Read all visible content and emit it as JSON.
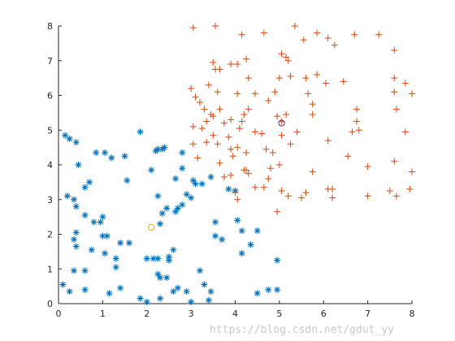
{
  "chart_data": {
    "type": "scatter",
    "title": "",
    "xlabel": "",
    "ylabel": "",
    "xlim": [
      0,
      8
    ],
    "ylim": [
      0,
      8
    ],
    "x_ticks": [
      "0",
      "1",
      "2",
      "3",
      "4",
      "5",
      "6",
      "7",
      "8"
    ],
    "y_ticks": [
      "0",
      "1",
      "2",
      "3",
      "4",
      "5",
      "6",
      "7",
      "8"
    ],
    "grid": false,
    "series": [
      {
        "marker": "asterisk",
        "color": "#0072BD",
        "points": [
          [
            0.15,
            4.85
          ],
          [
            0.25,
            4.75
          ],
          [
            0.4,
            4.65
          ],
          [
            0.2,
            3.1
          ],
          [
            0.35,
            3.0
          ],
          [
            0.45,
            4.0
          ],
          [
            0.6,
            3.35
          ],
          [
            0.7,
            3.5
          ],
          [
            0.85,
            4.35
          ],
          [
            1.05,
            4.35
          ],
          [
            1.2,
            4.2
          ],
          [
            1.5,
            4.25
          ],
          [
            1.55,
            3.55
          ],
          [
            1.85,
            4.95
          ],
          [
            0.4,
            2.8
          ],
          [
            0.6,
            2.55
          ],
          [
            0.8,
            2.35
          ],
          [
            1.0,
            2.5
          ],
          [
            0.95,
            2.35
          ],
          [
            0.4,
            2.05
          ],
          [
            0.35,
            1.85
          ],
          [
            0.4,
            1.65
          ],
          [
            1.0,
            1.95
          ],
          [
            1.1,
            1.95
          ],
          [
            0.75,
            1.55
          ],
          [
            1.05,
            1.45
          ],
          [
            1.3,
            1.3
          ],
          [
            1.4,
            1.75
          ],
          [
            1.6,
            1.75
          ],
          [
            1.3,
            1.05
          ],
          [
            0.35,
            0.95
          ],
          [
            0.6,
            0.95
          ],
          [
            0.1,
            0.55
          ],
          [
            0.25,
            0.35
          ],
          [
            0.6,
            0.4
          ],
          [
            1.15,
            0.3
          ],
          [
            1.4,
            0.45
          ],
          [
            1.85,
            0.15
          ],
          [
            2.0,
            0.05
          ],
          [
            2.3,
            0.15
          ],
          [
            2.6,
            0.35
          ],
          [
            2.7,
            0.45
          ],
          [
            2.9,
            0.35
          ],
          [
            3.0,
            0.05
          ],
          [
            3.2,
            0.95
          ],
          [
            3.3,
            0.55
          ],
          [
            3.4,
            0.1
          ],
          [
            3.45,
            0.35
          ],
          [
            2.15,
            1.3
          ],
          [
            2.0,
            1.3
          ],
          [
            2.25,
            1.3
          ],
          [
            2.5,
            1.35
          ],
          [
            2.6,
            1.55
          ],
          [
            2.5,
            1.25
          ],
          [
            2.25,
            0.85
          ],
          [
            2.3,
            0.75
          ],
          [
            2.45,
            0.75
          ],
          [
            2.3,
            2.3
          ],
          [
            2.35,
            2.6
          ],
          [
            2.45,
            2.75
          ],
          [
            2.65,
            2.65
          ],
          [
            2.7,
            2.75
          ],
          [
            2.8,
            2.85
          ],
          [
            2.25,
            3.1
          ],
          [
            2.1,
            3.85
          ],
          [
            2.65,
            3.6
          ],
          [
            2.9,
            3.15
          ],
          [
            3.0,
            3.05
          ],
          [
            3.1,
            3.45
          ],
          [
            3.05,
            3.55
          ],
          [
            3.25,
            3.45
          ],
          [
            2.8,
            3.9
          ],
          [
            2.2,
            4.4
          ],
          [
            2.25,
            4.45
          ],
          [
            2.35,
            4.45
          ],
          [
            2.4,
            4.5
          ],
          [
            2.8,
            4.35
          ],
          [
            3.45,
            3.65
          ],
          [
            3.55,
            2.35
          ],
          [
            3.55,
            1.95
          ],
          [
            3.7,
            1.85
          ],
          [
            3.85,
            3.3
          ],
          [
            4.0,
            3.25
          ],
          [
            4.05,
            2.4
          ],
          [
            4.15,
            2.1
          ],
          [
            4.15,
            1.45
          ],
          [
            4.35,
            1.7
          ],
          [
            4.5,
            2.1
          ],
          [
            4.5,
            0.3
          ],
          [
            4.75,
            0.4
          ],
          [
            4.95,
            0.4
          ],
          [
            4.95,
            1.25
          ]
        ]
      },
      {
        "marker": "plus",
        "color": "#D95319",
        "points": [
          [
            3.05,
            7.95
          ],
          [
            3.55,
            8.0
          ],
          [
            4.15,
            7.75
          ],
          [
            4.65,
            7.8
          ],
          [
            5.35,
            8.0
          ],
          [
            5.55,
            7.6
          ],
          [
            5.85,
            7.8
          ],
          [
            6.1,
            7.65
          ],
          [
            6.25,
            7.45
          ],
          [
            6.7,
            7.75
          ],
          [
            7.25,
            7.75
          ],
          [
            7.6,
            7.3
          ],
          [
            7.6,
            6.5
          ],
          [
            7.85,
            6.35
          ],
          [
            7.6,
            6.1
          ],
          [
            8.0,
            6.05
          ],
          [
            7.65,
            5.6
          ],
          [
            7.85,
            4.95
          ],
          [
            7.6,
            4.1
          ],
          [
            8.0,
            3.8
          ],
          [
            7.95,
            3.3
          ],
          [
            7.65,
            3.1
          ],
          [
            7.5,
            3.25
          ],
          [
            7.0,
            3.95
          ],
          [
            7.0,
            3.1
          ],
          [
            6.75,
            5.25
          ],
          [
            6.8,
            5.0
          ],
          [
            6.65,
            4.95
          ],
          [
            6.75,
            5.6
          ],
          [
            6.55,
            4.25
          ],
          [
            6.05,
            6.35
          ],
          [
            6.45,
            6.4
          ],
          [
            6.1,
            4.7
          ],
          [
            6.1,
            3.3
          ],
          [
            6.2,
            3.05
          ],
          [
            6.2,
            3.3
          ],
          [
            5.75,
            3.8
          ],
          [
            5.6,
            3.2
          ],
          [
            5.5,
            3.05
          ],
          [
            5.4,
            4.95
          ],
          [
            5.75,
            5.75
          ],
          [
            5.75,
            5.45
          ],
          [
            5.65,
            6.05
          ],
          [
            5.6,
            6.5
          ],
          [
            5.85,
            6.6
          ],
          [
            5.25,
            6.55
          ],
          [
            5.05,
            7.2
          ],
          [
            5.15,
            7.1
          ],
          [
            5.2,
            7.0
          ],
          [
            5.0,
            6.5
          ],
          [
            4.9,
            6.1
          ],
          [
            4.75,
            5.85
          ],
          [
            4.95,
            5.4
          ],
          [
            5.15,
            5.45
          ],
          [
            5.05,
            5.25
          ],
          [
            5.05,
            4.85
          ],
          [
            5.25,
            4.6
          ],
          [
            4.45,
            4.95
          ],
          [
            4.6,
            4.9
          ],
          [
            4.7,
            4.45
          ],
          [
            4.85,
            4.35
          ],
          [
            5.0,
            4.0
          ],
          [
            4.8,
            3.9
          ],
          [
            4.75,
            3.6
          ],
          [
            5.05,
            3.25
          ],
          [
            5.2,
            3.1
          ],
          [
            4.95,
            2.65
          ],
          [
            4.65,
            3.35
          ],
          [
            4.45,
            3.35
          ],
          [
            4.3,
            3.75
          ],
          [
            4.25,
            3.85
          ],
          [
            4.2,
            3.85
          ],
          [
            4.25,
            4.35
          ],
          [
            4.05,
            4.5
          ],
          [
            3.9,
            4.45
          ],
          [
            3.85,
            4.8
          ],
          [
            4.1,
            5.05
          ],
          [
            4.15,
            5.25
          ],
          [
            4.2,
            5.45
          ],
          [
            4.3,
            5.6
          ],
          [
            4.45,
            6.05
          ],
          [
            4.05,
            6.05
          ],
          [
            4.3,
            6.5
          ],
          [
            4.05,
            6.9
          ],
          [
            4.25,
            7.05
          ],
          [
            3.9,
            6.9
          ],
          [
            3.65,
            6.75
          ],
          [
            3.5,
            6.95
          ],
          [
            3.55,
            6.75
          ],
          [
            3.4,
            6.3
          ],
          [
            3.6,
            6.1
          ],
          [
            3.0,
            6.2
          ],
          [
            3.1,
            5.95
          ],
          [
            3.2,
            5.8
          ],
          [
            3.5,
            5.4
          ],
          [
            3.65,
            5.6
          ],
          [
            3.3,
            5.6
          ],
          [
            3.05,
            5.1
          ],
          [
            3.25,
            5.05
          ],
          [
            3.35,
            5.25
          ],
          [
            3.45,
            5.45
          ],
          [
            3.75,
            5.2
          ],
          [
            3.9,
            5.3
          ],
          [
            3.5,
            4.85
          ],
          [
            3.35,
            4.65
          ],
          [
            3.05,
            4.6
          ],
          [
            3.15,
            4.2
          ],
          [
            3.6,
            4.6
          ],
          [
            3.65,
            4.05
          ],
          [
            3.95,
            4.25
          ],
          [
            3.75,
            3.65
          ],
          [
            3.9,
            3.7
          ],
          [
            4.05,
            3.0
          ],
          [
            4.0,
            3.2
          ]
        ]
      }
    ],
    "annotations": [
      {
        "marker": "circle",
        "color": "#EDB120",
        "x": 2.1,
        "y": 2.2
      },
      {
        "marker": "circle",
        "color": "#7E2F8E",
        "x": 5.05,
        "y": 5.2
      }
    ],
    "watermark_text": "https://blog.csdn.net/gdut_yy"
  }
}
